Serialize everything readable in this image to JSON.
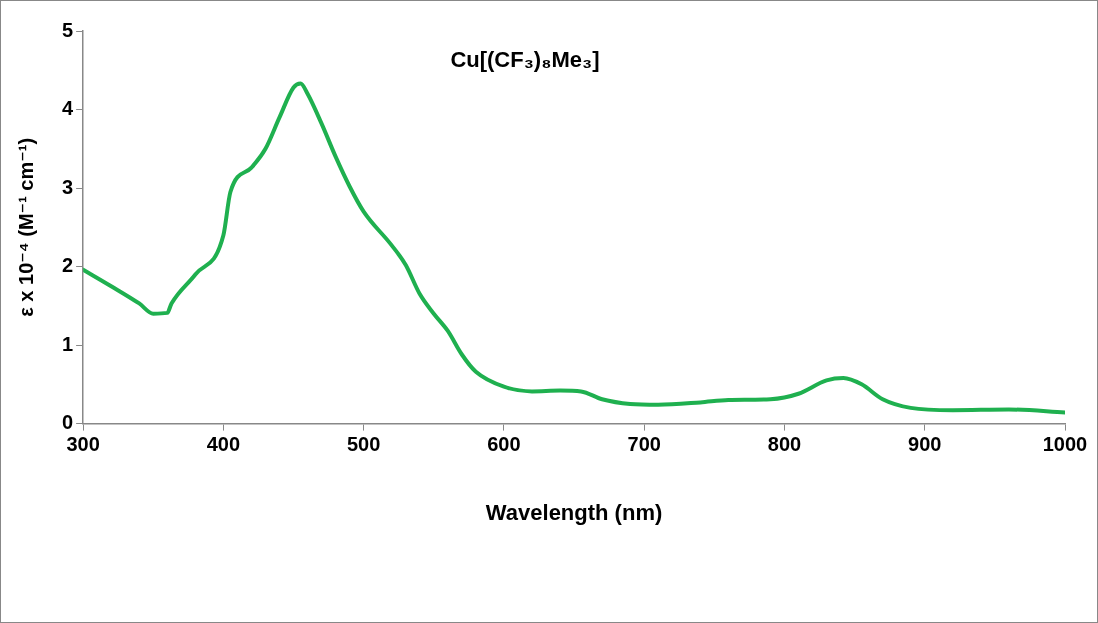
{
  "chart_data": {
    "type": "line",
    "title": "Cu[(CF₃)₈Me₃]",
    "xlabel": "Wavelength (nm)",
    "ylabel": "ε x 10⁻⁴ (M⁻¹ cm⁻¹)",
    "x": [
      300,
      320,
      340,
      350,
      360,
      363,
      380,
      400,
      405,
      420,
      430,
      440,
      450,
      455,
      460,
      470,
      480,
      490,
      500,
      520,
      530,
      540,
      550,
      560,
      570,
      580,
      600,
      620,
      640,
      655,
      670,
      690,
      710,
      740,
      760,
      790,
      810,
      830,
      842,
      855,
      870,
      890,
      920,
      960,
      1000
    ],
    "series": [
      {
        "color": "#1fb04f",
        "values": [
          1.96,
          1.75,
          1.53,
          1.4,
          1.41,
          1.53,
          1.9,
          2.4,
          2.95,
          3.26,
          3.5,
          3.9,
          4.28,
          4.33,
          4.2,
          3.82,
          3.4,
          3.02,
          2.7,
          2.27,
          2.02,
          1.65,
          1.4,
          1.18,
          0.88,
          0.66,
          0.47,
          0.41,
          0.42,
          0.41,
          0.31,
          0.25,
          0.24,
          0.27,
          0.3,
          0.31,
          0.38,
          0.55,
          0.58,
          0.5,
          0.31,
          0.2,
          0.17,
          0.18,
          0.14
        ]
      }
    ],
    "xlim": [
      300,
      1000
    ],
    "xticks": [
      300,
      400,
      500,
      600,
      700,
      800,
      900,
      1000
    ],
    "ylim": [
      0,
      5
    ],
    "yticks": [
      0,
      1,
      2,
      3,
      4,
      5
    ],
    "grid": false,
    "legend": false,
    "marker": "none",
    "line_style": "solid"
  }
}
